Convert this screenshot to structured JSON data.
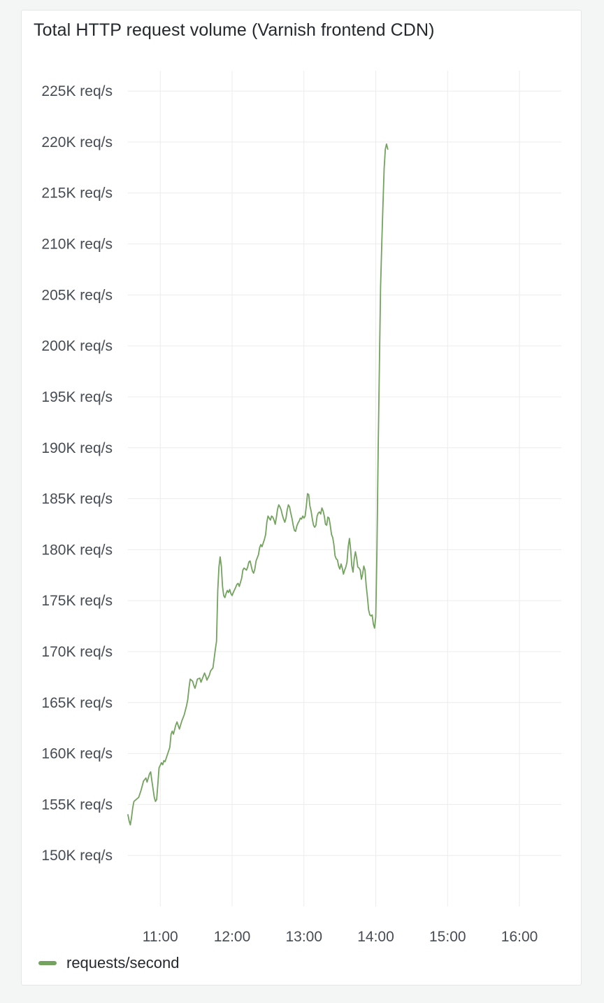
{
  "panel": {
    "title": "Total HTTP request volume (Varnish frontend CDN)"
  },
  "colors": {
    "series": "#73a35e",
    "grid": "#ececec",
    "text": "#464c54"
  },
  "chart_data": {
    "type": "line",
    "title": "Total HTTP request volume (Varnish frontend CDN)",
    "xlabel": "",
    "ylabel": "",
    "y_unit": "req/s",
    "ylim": [
      145000,
      227000
    ],
    "y_ticks": [
      150000,
      155000,
      160000,
      165000,
      170000,
      175000,
      180000,
      185000,
      190000,
      195000,
      200000,
      205000,
      210000,
      215000,
      220000,
      225000
    ],
    "y_tick_labels": [
      "150K req/s",
      "155K req/s",
      "160K req/s",
      "165K req/s",
      "170K req/s",
      "175K req/s",
      "180K req/s",
      "185K req/s",
      "190K req/s",
      "195K req/s",
      "200K req/s",
      "205K req/s",
      "210K req/s",
      "215K req/s",
      "220K req/s",
      "225K req/s"
    ],
    "x_ticks": [
      "11:00",
      "12:00",
      "13:00",
      "14:00",
      "15:00",
      "16:00"
    ],
    "xlim": [
      "10:33",
      "16:35"
    ],
    "grid": true,
    "legend": "bottom-left",
    "series": [
      {
        "name": "requests/second",
        "points": [
          [
            "10:33",
            154000
          ],
          [
            "10:34",
            153400
          ],
          [
            "10:35",
            153000
          ],
          [
            "10:36",
            153700
          ],
          [
            "10:37",
            154700
          ],
          [
            "10:38",
            155300
          ],
          [
            "10:40",
            155500
          ],
          [
            "10:42",
            155700
          ],
          [
            "10:44",
            156400
          ],
          [
            "10:46",
            157300
          ],
          [
            "10:48",
            157600
          ],
          [
            "10:49",
            157200
          ],
          [
            "10:51",
            158000
          ],
          [
            "10:52",
            158200
          ],
          [
            "10:53",
            157300
          ],
          [
            "10:55",
            155700
          ],
          [
            "10:56",
            155300
          ],
          [
            "10:57",
            155500
          ],
          [
            "10:58",
            157000
          ],
          [
            "10:59",
            158600
          ],
          [
            "11:01",
            159100
          ],
          [
            "11:02",
            158900
          ],
          [
            "11:03",
            159300
          ],
          [
            "11:04",
            159200
          ],
          [
            "11:06",
            159900
          ],
          [
            "11:08",
            160600
          ],
          [
            "11:09",
            161900
          ],
          [
            "11:10",
            162200
          ],
          [
            "11:11",
            161900
          ],
          [
            "11:13",
            162800
          ],
          [
            "11:14",
            163100
          ],
          [
            "11:16",
            162400
          ],
          [
            "11:18",
            163200
          ],
          [
            "11:20",
            163800
          ],
          [
            "11:22",
            164700
          ],
          [
            "11:23",
            165300
          ],
          [
            "11:24",
            166400
          ],
          [
            "11:25",
            167300
          ],
          [
            "11:27",
            167100
          ],
          [
            "11:28",
            166700
          ],
          [
            "11:29",
            166400
          ],
          [
            "11:30",
            166800
          ],
          [
            "11:31",
            167300
          ],
          [
            "11:33",
            167400
          ],
          [
            "11:34",
            167000
          ],
          [
            "11:36",
            167600
          ],
          [
            "11:37",
            167900
          ],
          [
            "11:38",
            167600
          ],
          [
            "11:39",
            167200
          ],
          [
            "11:41",
            167700
          ],
          [
            "11:42",
            168100
          ],
          [
            "11:44",
            168400
          ],
          [
            "11:45",
            169300
          ],
          [
            "11:46",
            170200
          ],
          [
            "11:47",
            171000
          ],
          [
            "11:48",
            176000
          ],
          [
            "11:49",
            178300
          ],
          [
            "11:50",
            179300
          ],
          [
            "11:51",
            178400
          ],
          [
            "11:52",
            176400
          ],
          [
            "11:53",
            175500
          ],
          [
            "11:54",
            175300
          ],
          [
            "11:55",
            175700
          ],
          [
            "11:56",
            176000
          ],
          [
            "11:57",
            175800
          ],
          [
            "11:58",
            176100
          ],
          [
            "11:59",
            175700
          ],
          [
            "12:00",
            175500
          ],
          [
            "12:01",
            175800
          ],
          [
            "12:03",
            176300
          ],
          [
            "12:04",
            176600
          ],
          [
            "12:05",
            176700
          ],
          [
            "12:06",
            176400
          ],
          [
            "12:08",
            177200
          ],
          [
            "12:09",
            178000
          ],
          [
            "12:10",
            178200
          ],
          [
            "12:12",
            178000
          ],
          [
            "12:13",
            178300
          ],
          [
            "12:14",
            178800
          ],
          [
            "12:15",
            178900
          ],
          [
            "12:16",
            178400
          ],
          [
            "12:17",
            177900
          ],
          [
            "12:18",
            177700
          ],
          [
            "12:19",
            178100
          ],
          [
            "12:20",
            178900
          ],
          [
            "12:22",
            179500
          ],
          [
            "12:23",
            180200
          ],
          [
            "12:24",
            180500
          ],
          [
            "12:25",
            180300
          ],
          [
            "12:27",
            181000
          ],
          [
            "12:28",
            181500
          ],
          [
            "12:29",
            182700
          ],
          [
            "12:30",
            183300
          ],
          [
            "12:31",
            183100
          ],
          [
            "12:32",
            182900
          ],
          [
            "12:33",
            183300
          ],
          [
            "12:34",
            183200
          ],
          [
            "12:35",
            182900
          ],
          [
            "12:36",
            182500
          ],
          [
            "12:37",
            183200
          ],
          [
            "12:38",
            184000
          ],
          [
            "12:39",
            184400
          ],
          [
            "12:40",
            184200
          ],
          [
            "12:41",
            183900
          ],
          [
            "12:42",
            183400
          ],
          [
            "12:43",
            183000
          ],
          [
            "12:44",
            182700
          ],
          [
            "12:45",
            183100
          ],
          [
            "12:46",
            183900
          ],
          [
            "12:47",
            184400
          ],
          [
            "12:48",
            184200
          ],
          [
            "12:49",
            183600
          ],
          [
            "12:50",
            183100
          ],
          [
            "12:51",
            182400
          ],
          [
            "12:52",
            181900
          ],
          [
            "12:53",
            181800
          ],
          [
            "12:54",
            182300
          ],
          [
            "12:55",
            182600
          ],
          [
            "12:56",
            182800
          ],
          [
            "12:57",
            183100
          ],
          [
            "12:58",
            183000
          ],
          [
            "12:59",
            183300
          ],
          [
            "13:00",
            183100
          ],
          [
            "13:01",
            183300
          ],
          [
            "13:02",
            184300
          ],
          [
            "13:03",
            185500
          ],
          [
            "13:04",
            185400
          ],
          [
            "13:05",
            184300
          ],
          [
            "13:06",
            183800
          ],
          [
            "13:07",
            183000
          ],
          [
            "13:08",
            182400
          ],
          [
            "13:09",
            182200
          ],
          [
            "13:10",
            182400
          ],
          [
            "13:11",
            183300
          ],
          [
            "13:12",
            183600
          ],
          [
            "13:13",
            183700
          ],
          [
            "13:14",
            183500
          ],
          [
            "13:15",
            184100
          ],
          [
            "13:16",
            183800
          ],
          [
            "13:17",
            183300
          ],
          [
            "13:18",
            182500
          ],
          [
            "13:19",
            182400
          ],
          [
            "13:20",
            183200
          ],
          [
            "13:21",
            183100
          ],
          [
            "13:22",
            182400
          ],
          [
            "13:23",
            181500
          ],
          [
            "13:24",
            181200
          ],
          [
            "13:25",
            180500
          ],
          [
            "13:26",
            179400
          ],
          [
            "13:27",
            179100
          ],
          [
            "13:28",
            179000
          ],
          [
            "13:29",
            178400
          ],
          [
            "13:30",
            178100
          ],
          [
            "13:31",
            178600
          ],
          [
            "13:32",
            178200
          ],
          [
            "13:33",
            177600
          ],
          [
            "13:34",
            178000
          ],
          [
            "13:35",
            178300
          ],
          [
            "13:36",
            178800
          ],
          [
            "13:37",
            180300
          ],
          [
            "13:38",
            181100
          ],
          [
            "13:39",
            180000
          ],
          [
            "13:40",
            178400
          ],
          [
            "13:41",
            177800
          ],
          [
            "13:42",
            179100
          ],
          [
            "13:43",
            179800
          ],
          [
            "13:44",
            179200
          ],
          [
            "13:45",
            178300
          ],
          [
            "13:46",
            178200
          ],
          [
            "13:47",
            178000
          ],
          [
            "13:48",
            177100
          ],
          [
            "13:49",
            177600
          ],
          [
            "13:50",
            178400
          ],
          [
            "13:51",
            178000
          ],
          [
            "13:52",
            176500
          ],
          [
            "13:53",
            175400
          ],
          [
            "13:54",
            174100
          ],
          [
            "13:55",
            173600
          ],
          [
            "13:56",
            173500
          ],
          [
            "13:57",
            173600
          ],
          [
            "13:58",
            172700
          ],
          [
            "13:59",
            172300
          ],
          [
            "14:00",
            173400
          ],
          [
            "14:01",
            180000
          ],
          [
            "14:02",
            190000
          ],
          [
            "14:03",
            198000
          ],
          [
            "14:04",
            205800
          ],
          [
            "14:05",
            210000
          ],
          [
            "14:06",
            213800
          ],
          [
            "14:07",
            217400
          ],
          [
            "14:08",
            219300
          ],
          [
            "14:09",
            219800
          ],
          [
            "14:10",
            219300
          ]
        ]
      }
    ]
  },
  "legend": {
    "label": "requests/second"
  }
}
